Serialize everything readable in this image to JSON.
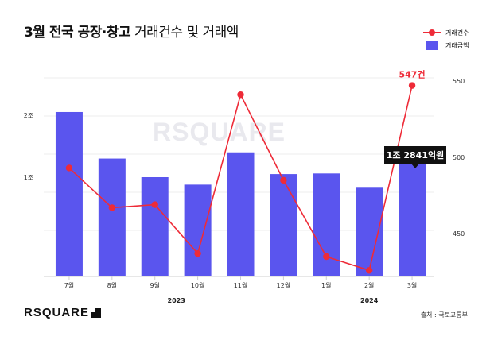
{
  "header": {
    "title_bold": "3월 전국 공장·창고",
    "title_light": "거래건수 및 거래액"
  },
  "legend": {
    "count_label": "거래건수",
    "amount_label": "거래금액"
  },
  "chart_data": {
    "type": "bar",
    "title": "3월 전국 공장·창고 거래건수 및 거래액",
    "categories": [
      "7월",
      "8월",
      "9월",
      "10월",
      "11월",
      "12월",
      "1월",
      "2월",
      "3월"
    ],
    "year_labels": [
      {
        "label": "2023",
        "from_index": 0,
        "to_index": 5
      },
      {
        "label": "2024",
        "from_index": 6,
        "to_index": 8
      }
    ],
    "series": [
      {
        "name": "거래금액",
        "chart": "bar",
        "axis": "left",
        "unit": "억원",
        "color": "#5a55ee",
        "values": [
          20500,
          13000,
          10000,
          8800,
          14000,
          10500,
          10600,
          8300,
          12841
        ]
      },
      {
        "name": "거래건수",
        "chart": "line",
        "axis": "right",
        "color": "#ee2b38",
        "values": [
          493,
          467,
          469,
          437,
          541,
          485,
          435,
          426,
          547
        ]
      }
    ],
    "y_left": {
      "ticks": [
        {
          "value": 10000,
          "label": "1조"
        },
        {
          "value": 20000,
          "label": "2조"
        }
      ],
      "range": [
        -6000,
        26000
      ]
    },
    "y_right": {
      "ticks": [
        450,
        500,
        550
      ],
      "range": [
        422,
        552
      ]
    },
    "annotations": [
      {
        "series": "거래건수",
        "index": 8,
        "text": "547건"
      },
      {
        "series": "거래금액",
        "index": 8,
        "text": "1조 2841억원"
      }
    ],
    "grid": true
  },
  "footer": {
    "logo_text": "RSQUARE",
    "watermark": "RSQUARE",
    "source": "출처 : 국토교통부"
  }
}
